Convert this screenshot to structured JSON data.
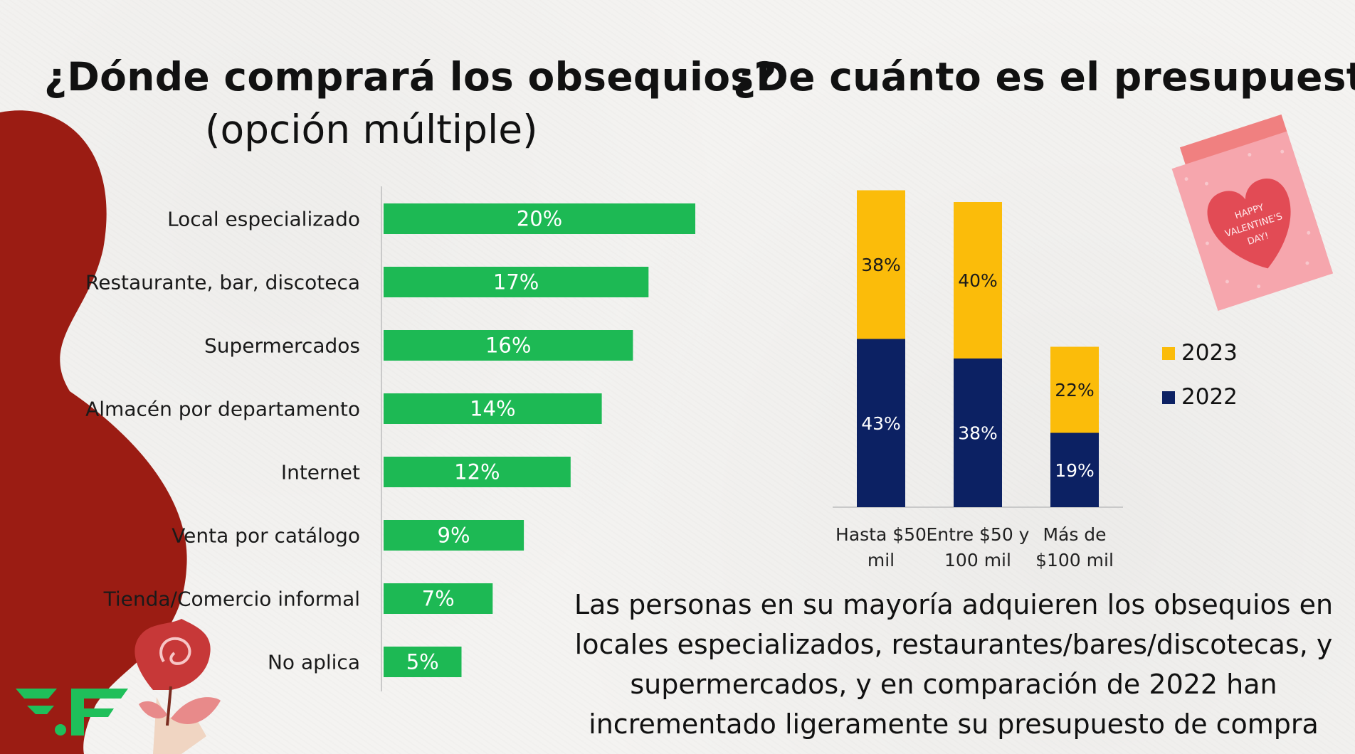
{
  "left_panel": {
    "title": "¿Dónde comprará los obsequios?",
    "subtitle": "(opción múltiple)"
  },
  "right_panel": {
    "title": "¿De cuánto es el presupuesto?"
  },
  "caption_lines": [
    "Las personas en su mayoría adquieren los obsequios en",
    "locales especializados, restaurantes/bares/discotecas, y",
    "supermercados, y en comparación de 2022 han",
    "incrementado ligeramente su presupuesto de compra"
  ],
  "card_text": [
    "HAPPY",
    "VALENTINE'S",
    "DAY!"
  ],
  "colors": {
    "green": "#1db954",
    "yellow": "#fbbc0a",
    "navy": "#0c2163",
    "red": "#9b1c13"
  },
  "chart_data": [
    {
      "type": "bar",
      "orientation": "horizontal",
      "title": "¿Dónde comprará los obsequios?",
      "subtitle": "(opción múltiple)",
      "categories": [
        "Local especializado",
        "Restaurante, bar, discoteca",
        "Supermercados",
        "Almacén por departamento",
        "Internet",
        "Venta por catálogo",
        "Tienda/Comercio informal",
        "No aplica"
      ],
      "values": [
        20,
        17,
        16,
        14,
        12,
        9,
        7,
        5
      ],
      "value_labels": [
        "20%",
        "17%",
        "16%",
        "14%",
        "12%",
        "9%",
        "7%",
        "5%"
      ],
      "unit": "%",
      "xlim": [
        0,
        20
      ]
    },
    {
      "type": "bar",
      "orientation": "vertical",
      "stacked": true,
      "title": "¿De cuánto es el presupuesto?",
      "categories": [
        [
          "Hasta $50",
          "mil"
        ],
        [
          "Entre $50 y",
          "100 mil"
        ],
        [
          "Más de",
          "$100 mil"
        ]
      ],
      "series": [
        {
          "name": "2022",
          "values": [
            43,
            38,
            19
          ],
          "labels": [
            "43%",
            "38%",
            "19%"
          ]
        },
        {
          "name": "2023",
          "values": [
            38,
            40,
            22
          ],
          "labels": [
            "38%",
            "40%",
            "22%"
          ]
        }
      ],
      "legend": [
        "2023",
        "2022"
      ],
      "legend_position": "right"
    }
  ]
}
